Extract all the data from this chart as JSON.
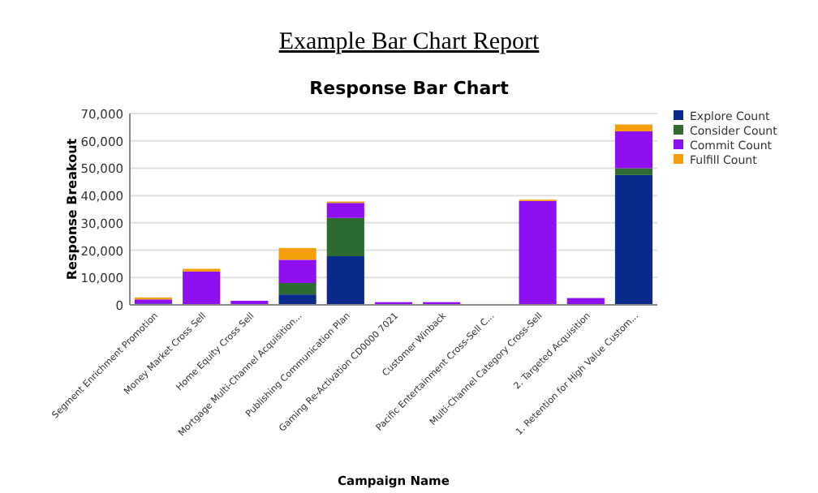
{
  "chart_data": {
    "type": "bar",
    "title": "Example Bar Chart Report",
    "subtitle": "Response Bar Chart",
    "xlabel": "Campaign Name",
    "ylabel": "Response Breakout",
    "categories": [
      "Segment Enrichment Promotion",
      "Money Market Cross Sell",
      "Home Equity Cross Sell",
      "Mortgage Multi-Channel Acquisition...",
      "Publishing Communication Plan",
      "Gaming Re-Activation CD0000 7021",
      "Customer Winback",
      "Pacific Entertainment Cross-Sell C...",
      "Multi-Channel Category Cross-Sell",
      "2. Targeted Acquisition",
      "1. Retention for High Value Custom..."
    ],
    "series": [
      {
        "name": "Explore Count",
        "color": "#0a2a8c",
        "values": [
          500,
          0,
          0,
          3800,
          17800,
          0,
          0,
          0,
          0,
          0,
          47500
        ]
      },
      {
        "name": "Consider Count",
        "color": "#2e6b30",
        "values": [
          0,
          0,
          0,
          4200,
          14000,
          0,
          0,
          0,
          0,
          0,
          2500
        ]
      },
      {
        "name": "Commit Count",
        "color": "#8f0ff0",
        "values": [
          1500,
          12200,
          1500,
          8500,
          5500,
          1000,
          1000,
          null,
          38000,
          2500,
          13500
        ]
      },
      {
        "name": "Fulfill Count",
        "color": "#f5a00a",
        "values": [
          700,
          1000,
          0,
          4300,
          500,
          0,
          0,
          0,
          500,
          0,
          2500
        ]
      }
    ],
    "stacked": true,
    "ylim": [
      0,
      70000
    ],
    "yticks": [
      {
        "value": 0,
        "label": "0"
      },
      {
        "value": 10000,
        "label": "10,000"
      },
      {
        "value": 20000,
        "label": "20,000"
      },
      {
        "value": 30000,
        "label": "30,000"
      },
      {
        "value": 40000,
        "label": "40,000"
      },
      {
        "value": 50000,
        "label": "50,000"
      },
      {
        "value": 60000,
        "label": "60,000"
      },
      {
        "value": 70000,
        "label": "70,000"
      }
    ],
    "grid": "y",
    "legend": "right"
  }
}
